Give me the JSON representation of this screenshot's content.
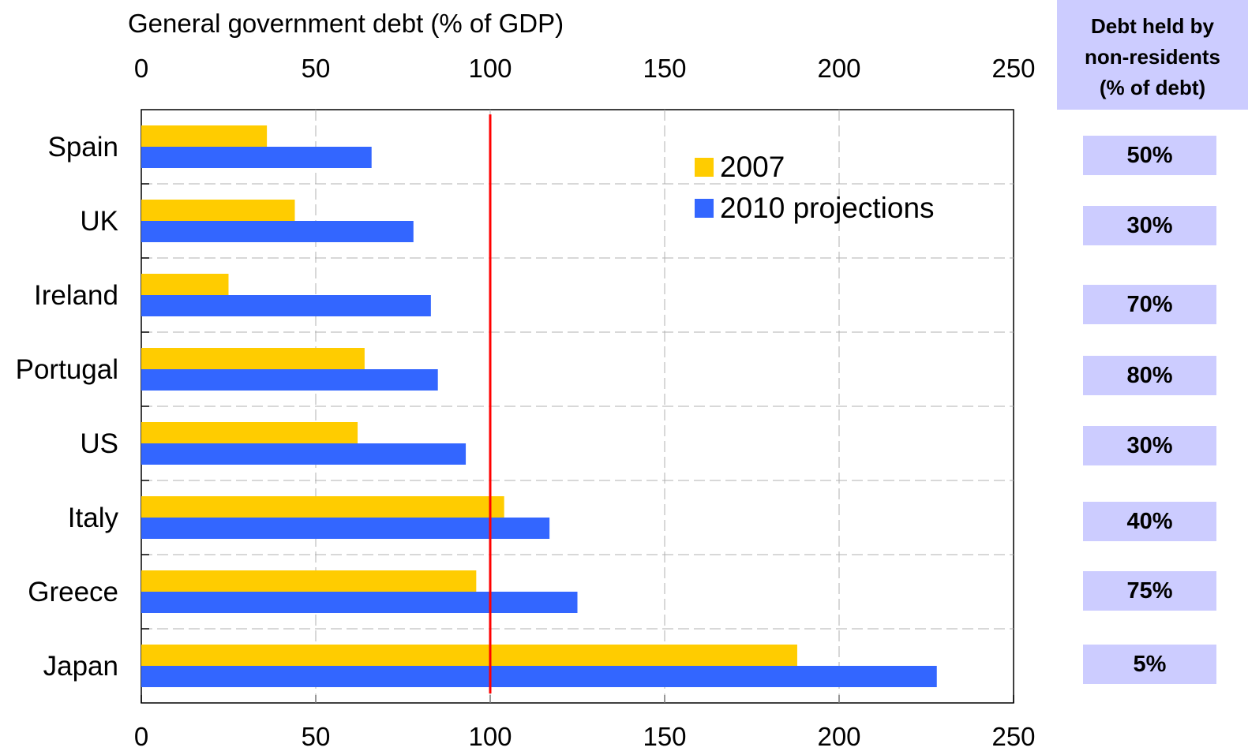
{
  "chart_data": {
    "type": "bar",
    "orientation": "horizontal",
    "title": "General government debt (% of GDP)",
    "categories": [
      "Spain",
      "UK",
      "Ireland",
      "Portugal",
      "US",
      "Italy",
      "Greece",
      "Japan"
    ],
    "series": [
      {
        "name": "2007",
        "color": "#ffcc00",
        "values": [
          36,
          44,
          25,
          64,
          62,
          104,
          96,
          188
        ]
      },
      {
        "name": "2010 projections",
        "color": "#3366ff",
        "values": [
          66,
          78,
          83,
          85,
          93,
          117,
          125,
          228
        ]
      }
    ],
    "xlim": [
      0,
      250
    ],
    "x_ticks": [
      "0",
      "50",
      "100",
      "150",
      "200",
      "250"
    ],
    "reference_line": {
      "value": 100,
      "color": "#ff0000"
    },
    "grid": true,
    "legend_position": "top-right inside plot"
  },
  "side_table": {
    "header": [
      "Debt held by",
      "non-residents",
      "(% of debt)"
    ],
    "values": [
      "50%",
      "30%",
      "70%",
      "80%",
      "30%",
      "40%",
      "75%",
      "5%"
    ]
  }
}
